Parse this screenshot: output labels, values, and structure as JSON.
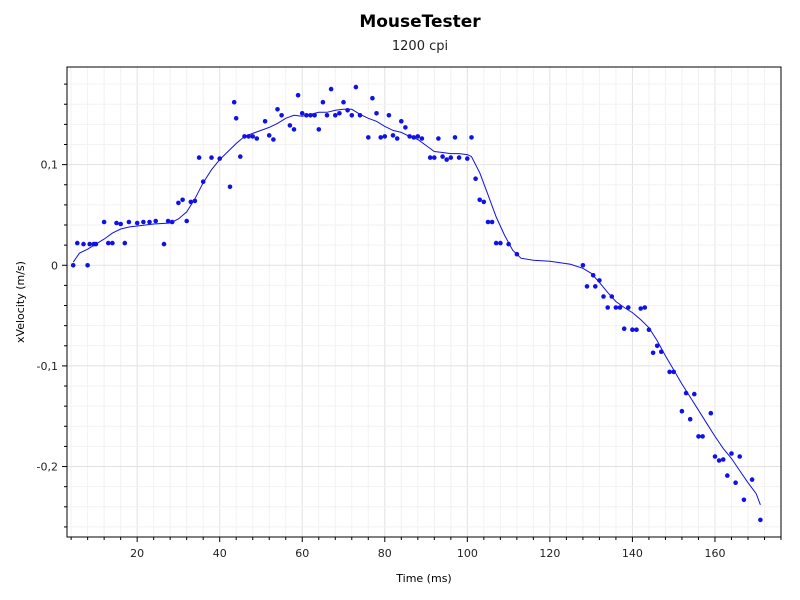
{
  "chart_data": {
    "type": "scatter",
    "title": "MouseTester",
    "subtitle": "1200 cpi",
    "xlabel": "Time (ms)",
    "ylabel": "xVelocity (m/s)",
    "xlim": [
      3,
      176
    ],
    "ylim": [
      -0.27,
      0.197
    ],
    "x_ticks": [
      20,
      40,
      60,
      80,
      100,
      120,
      140,
      160
    ],
    "y_ticks": [
      -0.2,
      -0.1,
      0,
      0.1
    ],
    "y_tick_labels": [
      "-0,2",
      "-0,1",
      "0",
      "0,1"
    ],
    "x_tick_labels": [
      "20",
      "40",
      "60",
      "80",
      "100",
      "120",
      "140",
      "160"
    ],
    "grid": true,
    "colors": {
      "series": "#1010e8",
      "grid": "#ebebeb",
      "axis": "#000000"
    },
    "series": [
      {
        "type": "scatter",
        "points": [
          [
            4.5,
            0
          ],
          [
            5.5,
            0.022
          ],
          [
            7,
            0.021
          ],
          [
            8,
            0
          ],
          [
            8.5,
            0.021
          ],
          [
            9.5,
            0.021
          ],
          [
            10,
            0.021
          ],
          [
            12,
            0.043
          ],
          [
            13,
            0.022
          ],
          [
            14,
            0.022
          ],
          [
            15,
            0.042
          ],
          [
            16,
            0.041
          ],
          [
            17,
            0.022
          ],
          [
            18,
            0.043
          ],
          [
            20,
            0.042
          ],
          [
            21.5,
            0.043
          ],
          [
            23,
            0.043
          ],
          [
            24.5,
            0.044
          ],
          [
            26.5,
            0.021
          ],
          [
            27.5,
            0.044
          ],
          [
            28.5,
            0.043
          ],
          [
            30,
            0.062
          ],
          [
            31,
            0.065
          ],
          [
            32,
            0.044
          ],
          [
            33,
            0.063
          ],
          [
            34,
            0.064
          ],
          [
            35,
            0.107
          ],
          [
            36,
            0.083
          ],
          [
            38,
            0.107
          ],
          [
            40,
            0.106
          ],
          [
            42.5,
            0.078
          ],
          [
            43.5,
            0.162
          ],
          [
            44,
            0.146
          ],
          [
            45,
            0.108
          ],
          [
            46,
            0.128
          ],
          [
            47,
            0.128
          ],
          [
            48,
            0.128
          ],
          [
            49,
            0.126
          ],
          [
            51,
            0.143
          ],
          [
            52,
            0.129
          ],
          [
            53,
            0.125
          ],
          [
            54,
            0.155
          ],
          [
            55,
            0.149
          ],
          [
            57,
            0.139
          ],
          [
            58,
            0.135
          ],
          [
            59,
            0.169
          ],
          [
            60,
            0.151
          ],
          [
            61,
            0.149
          ],
          [
            62,
            0.149
          ],
          [
            63,
            0.149
          ],
          [
            64,
            0.135
          ],
          [
            65,
            0.162
          ],
          [
            66,
            0.149
          ],
          [
            67,
            0.175
          ],
          [
            68,
            0.149
          ],
          [
            69,
            0.151
          ],
          [
            70,
            0.162
          ],
          [
            71,
            0.154
          ],
          [
            72,
            0.149
          ],
          [
            73,
            0.177
          ],
          [
            74,
            0.149
          ],
          [
            76,
            0.127
          ],
          [
            77,
            0.166
          ],
          [
            78,
            0.151
          ],
          [
            79,
            0.127
          ],
          [
            80,
            0.128
          ],
          [
            81,
            0.149
          ],
          [
            82,
            0.129
          ],
          [
            83,
            0.126
          ],
          [
            84,
            0.143
          ],
          [
            85,
            0.137
          ],
          [
            86,
            0.128
          ],
          [
            87,
            0.127
          ],
          [
            88,
            0.128
          ],
          [
            89,
            0.126
          ],
          [
            91,
            0.107
          ],
          [
            92,
            0.107
          ],
          [
            93,
            0.126
          ],
          [
            94,
            0.108
          ],
          [
            95,
            0.105
          ],
          [
            96,
            0.107
          ],
          [
            97,
            0.127
          ],
          [
            98,
            0.107
          ],
          [
            100,
            0.106
          ],
          [
            101,
            0.127
          ],
          [
            102,
            0.086
          ],
          [
            103,
            0.065
          ],
          [
            104,
            0.063
          ],
          [
            105,
            0.043
          ],
          [
            106,
            0.043
          ],
          [
            107,
            0.022
          ],
          [
            108,
            0.022
          ],
          [
            110,
            0.021
          ],
          [
            112,
            0.011
          ],
          [
            128,
            0
          ],
          [
            129,
            -0.021
          ],
          [
            130.5,
            -0.01
          ],
          [
            131,
            -0.021
          ],
          [
            132,
            -0.015
          ],
          [
            133,
            -0.031
          ],
          [
            134,
            -0.042
          ],
          [
            135,
            -0.031
          ],
          [
            136,
            -0.042
          ],
          [
            137,
            -0.042
          ],
          [
            138,
            -0.063
          ],
          [
            139,
            -0.042
          ],
          [
            140,
            -0.064
          ],
          [
            141,
            -0.064
          ],
          [
            142,
            -0.043
          ],
          [
            143,
            -0.042
          ],
          [
            144,
            -0.064
          ],
          [
            145,
            -0.087
          ],
          [
            146,
            -0.08
          ],
          [
            147,
            -0.086
          ],
          [
            149,
            -0.106
          ],
          [
            150,
            -0.106
          ],
          [
            152,
            -0.145
          ],
          [
            153,
            -0.127
          ],
          [
            154,
            -0.153
          ],
          [
            155,
            -0.128
          ],
          [
            156,
            -0.17
          ],
          [
            157,
            -0.17
          ],
          [
            159,
            -0.147
          ],
          [
            160,
            -0.19
          ],
          [
            161,
            -0.194
          ],
          [
            162,
            -0.193
          ],
          [
            163,
            -0.209
          ],
          [
            164,
            -0.187
          ],
          [
            165,
            -0.216
          ],
          [
            166,
            -0.19
          ],
          [
            167,
            -0.233
          ],
          [
            169,
            -0.213
          ],
          [
            171,
            -0.253
          ]
        ]
      },
      {
        "type": "line",
        "points": [
          [
            4.5,
            0.003
          ],
          [
            6,
            0.012
          ],
          [
            8,
            0.016
          ],
          [
            10,
            0.021
          ],
          [
            12,
            0.026
          ],
          [
            14,
            0.032
          ],
          [
            16,
            0.036
          ],
          [
            18,
            0.038
          ],
          [
            20,
            0.039
          ],
          [
            24,
            0.041
          ],
          [
            28,
            0.042
          ],
          [
            30,
            0.046
          ],
          [
            32,
            0.053
          ],
          [
            34,
            0.066
          ],
          [
            36,
            0.082
          ],
          [
            38,
            0.095
          ],
          [
            40,
            0.105
          ],
          [
            42,
            0.113
          ],
          [
            44,
            0.121
          ],
          [
            46,
            0.128
          ],
          [
            48,
            0.131
          ],
          [
            50,
            0.134
          ],
          [
            52,
            0.137
          ],
          [
            54,
            0.141
          ],
          [
            56,
            0.146
          ],
          [
            58,
            0.149
          ],
          [
            60,
            0.148
          ],
          [
            62,
            0.15
          ],
          [
            64,
            0.152
          ],
          [
            66,
            0.152
          ],
          [
            68,
            0.154
          ],
          [
            70,
            0.155
          ],
          [
            72,
            0.155
          ],
          [
            74,
            0.15
          ],
          [
            76,
            0.146
          ],
          [
            78,
            0.143
          ],
          [
            80,
            0.138
          ],
          [
            82,
            0.134
          ],
          [
            84,
            0.132
          ],
          [
            86,
            0.128
          ],
          [
            88,
            0.125
          ],
          [
            90,
            0.119
          ],
          [
            92,
            0.113
          ],
          [
            94,
            0.112
          ],
          [
            96,
            0.111
          ],
          [
            98,
            0.111
          ],
          [
            100,
            0.11
          ],
          [
            101,
            0.108
          ],
          [
            103,
            0.092
          ],
          [
            105,
            0.07
          ],
          [
            107,
            0.048
          ],
          [
            109,
            0.03
          ],
          [
            111,
            0.015
          ],
          [
            113,
            0.007
          ],
          [
            116,
            0.005
          ],
          [
            120,
            0.004
          ],
          [
            125,
            0.001
          ],
          [
            128,
            -0.003
          ],
          [
            130,
            -0.008
          ],
          [
            132,
            -0.017
          ],
          [
            134,
            -0.027
          ],
          [
            136,
            -0.036
          ],
          [
            138,
            -0.042
          ],
          [
            140,
            -0.047
          ],
          [
            142,
            -0.054
          ],
          [
            144,
            -0.062
          ],
          [
            146,
            -0.075
          ],
          [
            148,
            -0.09
          ],
          [
            150,
            -0.104
          ],
          [
            152,
            -0.118
          ],
          [
            154,
            -0.131
          ],
          [
            156,
            -0.144
          ],
          [
            158,
            -0.157
          ],
          [
            160,
            -0.17
          ],
          [
            162,
            -0.182
          ],
          [
            164,
            -0.192
          ],
          [
            166,
            -0.204
          ],
          [
            168,
            -0.216
          ],
          [
            170,
            -0.227
          ],
          [
            171,
            -0.238
          ]
        ]
      }
    ]
  }
}
